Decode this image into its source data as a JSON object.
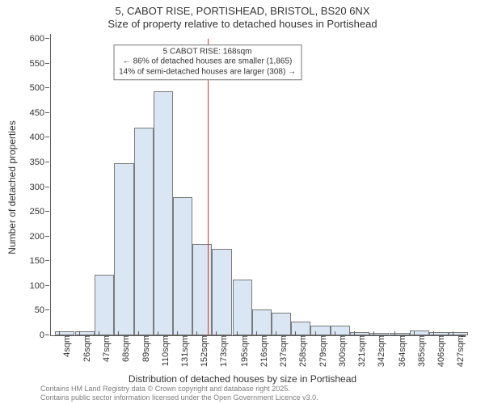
{
  "title": {
    "line1": "5, CABOT RISE, PORTISHEAD, BRISTOL, BS20 6NX",
    "line2": "Size of property relative to detached houses in Portishead",
    "fontsize": 13
  },
  "chart": {
    "type": "histogram",
    "background_color": "#ffffff",
    "axis_color": "#5b5b5b",
    "bar_fill": "#dae6f3",
    "bar_border": "#7a7a7a",
    "vline_color": "#d33a2f",
    "vline_x": 168,
    "ylim": [
      0,
      600
    ],
    "ytick_step": 50,
    "xlim": [
      0,
      440
    ],
    "x_bin_width": 21,
    "x_tick_labels": [
      "4sqm",
      "26sqm",
      "47sqm",
      "68sqm",
      "89sqm",
      "110sqm",
      "131sqm",
      "152sqm",
      "173sqm",
      "195sqm",
      "216sqm",
      "237sqm",
      "258sqm",
      "279sqm",
      "300sqm",
      "321sqm",
      "342sqm",
      "364sqm",
      "385sqm",
      "406sqm",
      "427sqm"
    ],
    "bins": [
      {
        "x": 4,
        "count": 8
      },
      {
        "x": 26,
        "count": 8
      },
      {
        "x": 47,
        "count": 122
      },
      {
        "x": 68,
        "count": 348
      },
      {
        "x": 89,
        "count": 420
      },
      {
        "x": 110,
        "count": 494
      },
      {
        "x": 131,
        "count": 280
      },
      {
        "x": 152,
        "count": 185
      },
      {
        "x": 173,
        "count": 175
      },
      {
        "x": 195,
        "count": 113
      },
      {
        "x": 216,
        "count": 52
      },
      {
        "x": 237,
        "count": 45
      },
      {
        "x": 258,
        "count": 28
      },
      {
        "x": 279,
        "count": 20
      },
      {
        "x": 300,
        "count": 20
      },
      {
        "x": 321,
        "count": 7
      },
      {
        "x": 342,
        "count": 5
      },
      {
        "x": 364,
        "count": 5
      },
      {
        "x": 385,
        "count": 10
      },
      {
        "x": 406,
        "count": 7
      },
      {
        "x": 427,
        "count": 7
      }
    ],
    "y_axis_label": "Number of detached properties",
    "x_axis_label": "Distribution of detached houses by size in Portishead",
    "label_fontsize": 12,
    "tick_fontsize": 11
  },
  "annotation": {
    "line1": "5 CABOT RISE: 168sqm",
    "line2": "← 86% of detached houses are smaller (1,865)",
    "line3": "14% of semi-detached houses are larger (308) →",
    "fontsize": 10,
    "border_color": "#777777",
    "y_position_value": 552
  },
  "footer": {
    "line1": "Contains HM Land Registry data © Crown copyright and database right 2025.",
    "line2": "Contains public sector information licensed under the Open Government Licence v3.0.",
    "color": "#7d7d7d",
    "fontsize": 9
  }
}
